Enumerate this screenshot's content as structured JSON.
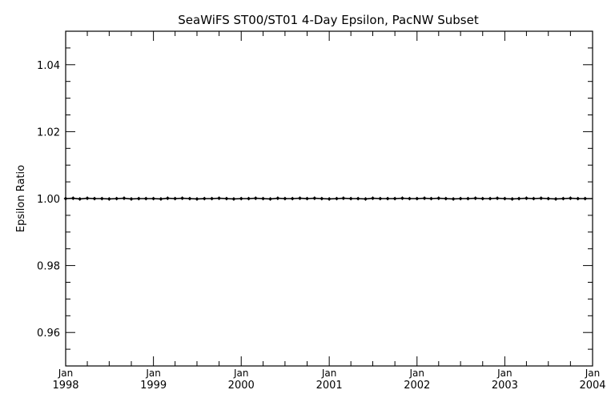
{
  "chart_data": {
    "type": "line",
    "title": "SeaWiFS ST00/ST01 4-Day Epsilon, PacNW Subset",
    "xlabel": "",
    "ylabel": "Epsilon Ratio",
    "xlim": [
      "1998-01-01",
      "2004-01-01"
    ],
    "ylim": [
      0.95,
      1.05
    ],
    "grid": false,
    "legend": "none",
    "x_ticks": [
      {
        "month": "Jan",
        "year": "1998",
        "date": "1998-01-01"
      },
      {
        "month": "Jan",
        "year": "1999",
        "date": "1999-01-01"
      },
      {
        "month": "Jan",
        "year": "2000",
        "date": "2000-01-01"
      },
      {
        "month": "Jan",
        "year": "2001",
        "date": "2001-01-01"
      },
      {
        "month": "Jan",
        "year": "2002",
        "date": "2002-01-01"
      },
      {
        "month": "Jan",
        "year": "2003",
        "date": "2003-01-01"
      },
      {
        "month": "Jan",
        "year": "2004",
        "date": "2004-01-01"
      }
    ],
    "y_ticks": [
      {
        "value": 0.96,
        "label": "0.96"
      },
      {
        "value": 0.98,
        "label": "0.98"
      },
      {
        "value": 1.0,
        "label": "1.00"
      },
      {
        "value": 1.02,
        "label": "1.02"
      },
      {
        "value": 1.04,
        "label": "1.04"
      }
    ],
    "series": [
      {
        "x": [
          "1998-01-01",
          "1998-02-01",
          "1998-03-01",
          "1998-04-01",
          "1998-05-01",
          "1998-06-01",
          "1998-07-01",
          "1998-08-01",
          "1998-09-01",
          "1998-10-01",
          "1998-11-01",
          "1998-12-01",
          "1999-01-01",
          "1999-02-01",
          "1999-03-01",
          "1999-04-01",
          "1999-05-01",
          "1999-06-01",
          "1999-07-01",
          "1999-08-01",
          "1999-09-01",
          "1999-10-01",
          "1999-11-01",
          "1999-12-01",
          "2000-01-01",
          "2000-02-01",
          "2000-03-01",
          "2000-04-01",
          "2000-05-01",
          "2000-06-01",
          "2000-07-01",
          "2000-08-01",
          "2000-09-01",
          "2000-10-01",
          "2000-11-01",
          "2000-12-01",
          "2001-01-01",
          "2001-02-01",
          "2001-03-01",
          "2001-04-01",
          "2001-05-01",
          "2001-06-01",
          "2001-07-01",
          "2001-08-01",
          "2001-09-01",
          "2001-10-01",
          "2001-11-01",
          "2001-12-01",
          "2002-01-01",
          "2002-02-01",
          "2002-03-01",
          "2002-04-01",
          "2002-05-01",
          "2002-06-01",
          "2002-07-01",
          "2002-08-01",
          "2002-09-01",
          "2002-10-01",
          "2002-11-01",
          "2002-12-01",
          "2003-01-01",
          "2003-02-01",
          "2003-03-01",
          "2003-04-01",
          "2003-05-01",
          "2003-06-01",
          "2003-07-01",
          "2003-08-01",
          "2003-09-01",
          "2003-10-01",
          "2003-11-01",
          "2003-12-01"
        ],
        "values": [
          1.0,
          1.0001,
          0.9999,
          1.0001,
          1.0,
          1.0,
          0.9999,
          1.0,
          1.0001,
          0.9999,
          1.0,
          1.0,
          1.0,
          0.9999,
          1.0001,
          1.0,
          1.0001,
          1.0,
          0.9999,
          1.0,
          1.0,
          1.0001,
          1.0,
          0.9999,
          1.0,
          1.0,
          1.0001,
          1.0,
          0.9999,
          1.0001,
          1.0,
          1.0,
          1.0001,
          1.0,
          1.0001,
          1.0,
          0.9999,
          1.0,
          1.0001,
          1.0,
          1.0,
          0.9999,
          1.0001,
          1.0,
          1.0,
          1.0,
          1.0001,
          1.0,
          1.0,
          1.0001,
          1.0,
          1.0001,
          1.0,
          0.9999,
          1.0,
          1.0,
          1.0001,
          1.0,
          1.0,
          1.0001,
          1.0,
          0.9999,
          1.0,
          1.0001,
          1.0,
          1.0001,
          1.0,
          0.9999,
          1.0,
          1.0001,
          1.0,
          1.0
        ]
      }
    ]
  }
}
